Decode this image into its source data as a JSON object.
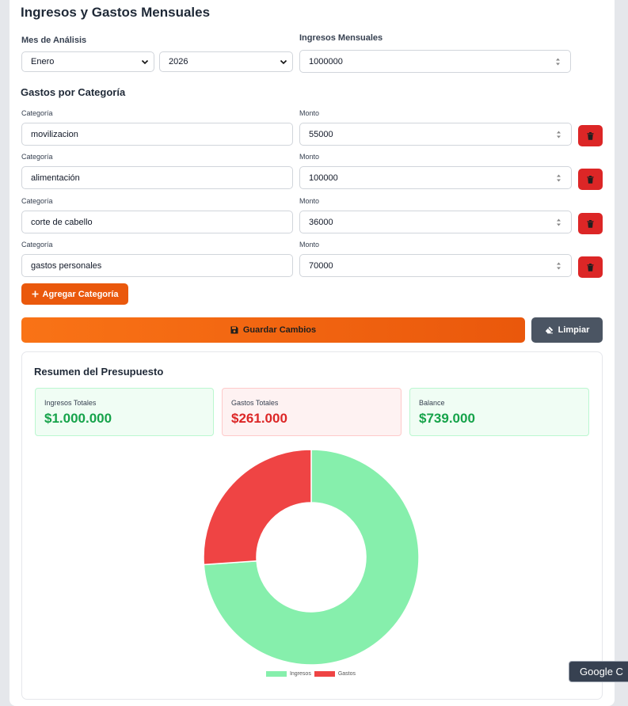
{
  "page": {
    "title": "Ingresos y Gastos Mensuales"
  },
  "analysis": {
    "month_label": "Mes de Análisis",
    "month_value": "Enero",
    "year_value": "2026",
    "income_label": "Ingresos Mensuales",
    "income_value": "1000000"
  },
  "expenses": {
    "section_title": "Gastos por Categoría",
    "category_label": "Categoría",
    "amount_label": "Monto",
    "rows": [
      {
        "category": "movilizacion",
        "amount": "55000"
      },
      {
        "category": "alimentación",
        "amount": "100000"
      },
      {
        "category": "corte de cabello",
        "amount": "36000"
      },
      {
        "category": "gastos personales",
        "amount": "70000"
      }
    ]
  },
  "actions": {
    "add_category": "Agregar Categoría",
    "save": "Guardar Cambios",
    "clear": "Limpiar"
  },
  "summary": {
    "title": "Resumen del Presupuesto",
    "income_label": "Ingresos Totales",
    "income_value": "$1.000.000",
    "expenses_label": "Gastos Totales",
    "expenses_value": "$261.000",
    "balance_label": "Balance",
    "balance_value": "$739.000"
  },
  "chart_data": {
    "type": "pie",
    "categories": [
      "Ingresos",
      "Gastos"
    ],
    "values": [
      739000,
      261000
    ],
    "colors": [
      "#86efac",
      "#ef4444"
    ],
    "legend": "bottom"
  },
  "tooltip": {
    "text": "Google C"
  },
  "colors": {
    "accent": "#ea580c",
    "danger": "#dc2626",
    "success": "#16a34a",
    "neutral_button": "#4b5563"
  }
}
